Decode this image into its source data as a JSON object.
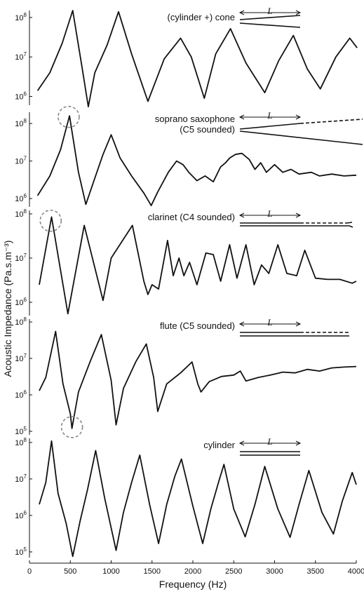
{
  "chart_data": {
    "type": "line",
    "xlabel": "Frequency (Hz)",
    "ylabel": "Acoustic Impedance (Pa.s.m⁻³)",
    "xlim": [
      0,
      4000
    ],
    "x_ticks": [
      "0",
      "500",
      "1000",
      "1500",
      "2000",
      "2500",
      "3000",
      "3500",
      "4000"
    ],
    "y_scale": "log",
    "instrument_length_label": "L",
    "panels": [
      {
        "label": "(cylinder +) cone",
        "ylim": [
          600000,
          150000000
        ],
        "y_ticks": [
          {
            "base": "10",
            "exp": "8",
            "value": 100000000
          },
          {
            "base": "10",
            "exp": "7",
            "value": 10000000
          },
          {
            "base": "10",
            "exp": "6",
            "value": 1000000
          }
        ],
        "series": [
          {
            "points": [
              [
                100,
                1400000
              ],
              [
                250,
                4000000
              ],
              [
                400,
                22000000
              ],
              [
                530,
                150000000
              ],
              [
                640,
                6000000
              ],
              [
                720,
                550000
              ],
              [
                800,
                4000000
              ],
              [
                950,
                20000000
              ],
              [
                1090,
                140000000
              ],
              [
                1250,
                12000000
              ],
              [
                1450,
                750000
              ],
              [
                1650,
                9000000
              ],
              [
                1850,
                30000000
              ],
              [
                1980,
                10000000
              ],
              [
                2140,
                900000
              ],
              [
                2280,
                12000000
              ],
              [
                2460,
                52000000
              ],
              [
                2650,
                7000000
              ],
              [
                2880,
                1250000
              ],
              [
                3050,
                8000000
              ],
              [
                3230,
                35000000
              ],
              [
                3400,
                5000000
              ],
              [
                3560,
                1550000
              ],
              [
                3750,
                10000000
              ],
              [
                3920,
                30000000
              ],
              [
                4010,
                17000000
              ]
            ]
          }
        ],
        "instrument": "cone"
      },
      {
        "label": "soprano saxophone",
        "label2": "(C5 sounded)",
        "ylim": [
          600000,
          200000000
        ],
        "y_ticks": [
          {
            "base": "10",
            "exp": "8",
            "value": 100000000
          },
          {
            "base": "10",
            "exp": "7",
            "value": 10000000
          },
          {
            "base": "10",
            "exp": "6",
            "value": 1000000
          }
        ],
        "series": [
          {
            "points": [
              [
                100,
                1200000
              ],
              [
                250,
                4000000
              ],
              [
                380,
                20000000
              ],
              [
                490,
                160000000
              ],
              [
                600,
                5000000
              ],
              [
                690,
                700000
              ],
              [
                800,
                3500000
              ],
              [
                900,
                15000000
              ],
              [
                1000,
                50000000
              ],
              [
                1110,
                12000000
              ],
              [
                1250,
                4000000
              ],
              [
                1400,
                1400000
              ],
              [
                1490,
                650000
              ],
              [
                1570,
                1500000
              ],
              [
                1700,
                5000000
              ],
              [
                1800,
                10000000
              ],
              [
                1880,
                8000000
              ],
              [
                1950,
                5000000
              ],
              [
                2050,
                3000000
              ],
              [
                2150,
                4000000
              ],
              [
                2250,
                2800000
              ],
              [
                2340,
                7000000
              ],
              [
                2400,
                9000000
              ],
              [
                2450,
                12000000
              ],
              [
                2520,
                15000000
              ],
              [
                2600,
                16000000
              ],
              [
                2690,
                11000000
              ],
              [
                2760,
                6000000
              ],
              [
                2830,
                9000000
              ],
              [
                2900,
                5000000
              ],
              [
                3000,
                8000000
              ],
              [
                3100,
                5000000
              ],
              [
                3200,
                6000000
              ],
              [
                3300,
                4500000
              ],
              [
                3450,
                5000000
              ],
              [
                3550,
                4000000
              ],
              [
                3700,
                4500000
              ],
              [
                3850,
                4000000
              ],
              [
                4000,
                4200000
              ]
            ]
          }
        ],
        "instrument": "sax",
        "circle": {
          "x": 480,
          "y": 150000000
        }
      },
      {
        "label": "clarinet (C4 sounded)",
        "ylim": [
          500000,
          120000000
        ],
        "y_ticks": [
          {
            "base": "10",
            "exp": "8",
            "value": 100000000
          },
          {
            "base": "10",
            "exp": "7",
            "value": 10000000
          },
          {
            "base": "10",
            "exp": "6",
            "value": 1000000
          }
        ],
        "series": [
          {
            "points": [
              [
                120,
                2500000
              ],
              [
                270,
                85000000
              ],
              [
                470,
                550000
              ],
              [
                670,
                55000000
              ],
              [
                900,
                1100000
              ],
              [
                1000,
                10000000
              ],
              [
                1260,
                55000000
              ],
              [
                1400,
                3000000
              ],
              [
                1450,
                1500000
              ],
              [
                1500,
                2500000
              ],
              [
                1580,
                2000000
              ],
              [
                1690,
                25000000
              ],
              [
                1760,
                4000000
              ],
              [
                1830,
                10000000
              ],
              [
                1890,
                4000000
              ],
              [
                1960,
                8000000
              ],
              [
                2050,
                2500000
              ],
              [
                2160,
                13000000
              ],
              [
                2250,
                12000000
              ],
              [
                2340,
                3000000
              ],
              [
                2450,
                20000000
              ],
              [
                2540,
                3500000
              ],
              [
                2650,
                20000000
              ],
              [
                2750,
                2500000
              ],
              [
                2840,
                7000000
              ],
              [
                2930,
                4500000
              ],
              [
                3040,
                20000000
              ],
              [
                3150,
                4500000
              ],
              [
                3270,
                4000000
              ],
              [
                3370,
                15000000
              ],
              [
                3500,
                3500000
              ],
              [
                3650,
                3300000
              ],
              [
                3800,
                3300000
              ],
              [
                3950,
                2700000
              ],
              [
                4000,
                3000000
              ]
            ]
          }
        ],
        "instrument": "clarinet",
        "circle": {
          "x": 260,
          "y": 70000000
        }
      },
      {
        "label": "flute (C5 sounded)",
        "ylim": [
          80000,
          120000000
        ],
        "y_ticks": [
          {
            "base": "10",
            "exp": "8",
            "value": 100000000
          },
          {
            "base": "10",
            "exp": "7",
            "value": 10000000
          },
          {
            "base": "10",
            "exp": "6",
            "value": 1000000
          },
          {
            "base": "10",
            "exp": "5",
            "value": 100000
          }
        ],
        "series": [
          {
            "points": [
              [
                120,
                1300000
              ],
              [
                200,
                3000000
              ],
              [
                320,
                55000000
              ],
              [
                410,
                2000000
              ],
              [
                500,
                300000
              ],
              [
                520,
                120000
              ],
              [
                600,
                1200000
              ],
              [
                750,
                9000000
              ],
              [
                880,
                45000000
              ],
              [
                1000,
                2500000
              ],
              [
                1060,
                150000
              ],
              [
                1150,
                1500000
              ],
              [
                1300,
                8000000
              ],
              [
                1430,
                25000000
              ],
              [
                1520,
                3000000
              ],
              [
                1570,
                350000
              ],
              [
                1680,
                2000000
              ],
              [
                1850,
                4000000
              ],
              [
                1990,
                8000000
              ],
              [
                2060,
                2000000
              ],
              [
                2100,
                1200000
              ],
              [
                2200,
                2300000
              ],
              [
                2350,
                3200000
              ],
              [
                2500,
                3500000
              ],
              [
                2580,
                4500000
              ],
              [
                2650,
                2400000
              ],
              [
                2800,
                3000000
              ],
              [
                2950,
                3500000
              ],
              [
                3100,
                4200000
              ],
              [
                3250,
                4000000
              ],
              [
                3400,
                5000000
              ],
              [
                3550,
                4500000
              ],
              [
                3700,
                5500000
              ],
              [
                3850,
                5800000
              ],
              [
                4000,
                6000000
              ]
            ]
          }
        ],
        "instrument": "flute",
        "circle": {
          "x": 520,
          "y": 130000
        }
      },
      {
        "label": "cylinder",
        "ylim": [
          70000,
          130000000
        ],
        "y_ticks": [
          {
            "base": "10",
            "exp": "8",
            "value": 100000000
          },
          {
            "base": "10",
            "exp": "7",
            "value": 10000000
          },
          {
            "base": "10",
            "exp": "6",
            "value": 1000000
          },
          {
            "base": "10",
            "exp": "5",
            "value": 100000
          }
        ],
        "series": [
          {
            "points": [
              [
                120,
                2000000
              ],
              [
                200,
                8000000
              ],
              [
                270,
                110000000
              ],
              [
                350,
                4000000
              ],
              [
                450,
                600000
              ],
              [
                530,
                75000
              ],
              [
                620,
                700000
              ],
              [
                710,
                5000000
              ],
              [
                810,
                60000000
              ],
              [
                920,
                3000000
              ],
              [
                1060,
                110000
              ],
              [
                1150,
                1200000
              ],
              [
                1250,
                8000000
              ],
              [
                1350,
                45000000
              ],
              [
                1470,
                2000000
              ],
              [
                1580,
                170000
              ],
              [
                1680,
                2000000
              ],
              [
                1780,
                12000000
              ],
              [
                1860,
                35000000
              ],
              [
                2000,
                1800000
              ],
              [
                2120,
                170000
              ],
              [
                2220,
                1500000
              ],
              [
                2320,
                9000000
              ],
              [
                2380,
                25000000
              ],
              [
                2500,
                1500000
              ],
              [
                2640,
                260000
              ],
              [
                2760,
                2000000
              ],
              [
                2880,
                22000000
              ],
              [
                3040,
                1500000
              ],
              [
                3190,
                250000
              ],
              [
                3300,
                2000000
              ],
              [
                3420,
                17000000
              ],
              [
                3580,
                1200000
              ],
              [
                3720,
                310000
              ],
              [
                3830,
                2500000
              ],
              [
                3950,
                15000000
              ],
              [
                4000,
                7000000
              ]
            ]
          }
        ],
        "instrument": "cylinder"
      }
    ]
  }
}
